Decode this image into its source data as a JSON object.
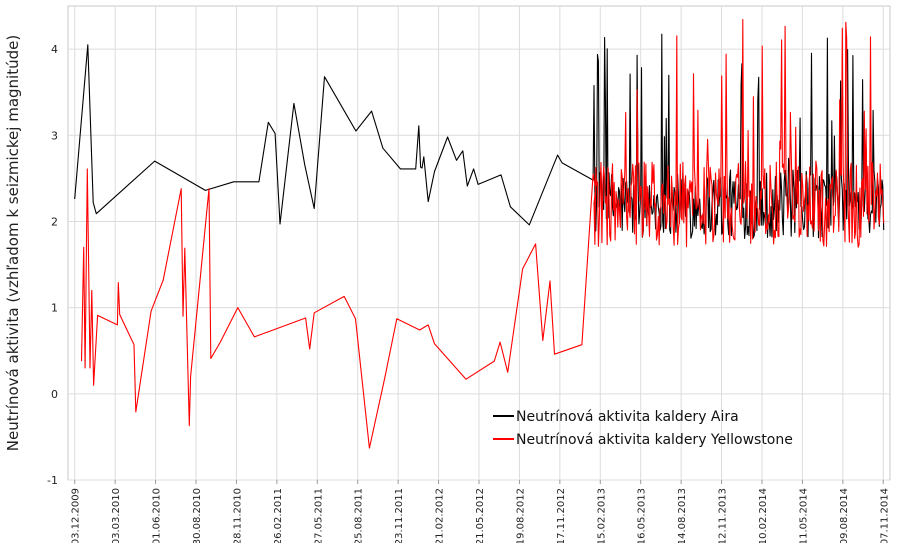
{
  "chart_data": {
    "type": "line",
    "title": "",
    "xlabel": "",
    "ylabel": "Neutrínová aktivita (vzhľadom k seizmickej magnitúde)",
    "x_tick_labels": [
      "03.12.2009",
      "03.03.2010",
      "01.06.2010",
      "30.08.2010",
      "28.11.2010",
      "26.02.2011",
      "27.05.2011",
      "25.08.2011",
      "23.11.2011",
      "21.02.2012",
      "21.05.2012",
      "19.08.2012",
      "17.11.2012",
      "15.02.2013",
      "16.05.2013",
      "14.08.2013",
      "12.11.2013",
      "10.02.2014",
      "11.05.2014",
      "09.08.2014",
      "07.11.2014"
    ],
    "y_tick_labels": [
      "-1",
      "0",
      "1",
      "2",
      "3",
      "4"
    ],
    "ylim": [
      -1,
      4.5
    ],
    "xlim": [
      "2009-11-18",
      "2014-11-22"
    ],
    "grid": true,
    "legend_position": "bottom-right",
    "series": [
      {
        "name": "Neutrínová aktivita kaldery Aira",
        "color": "#000000",
        "x": [
          "2009-12-03",
          "2010-01-01",
          "2010-01-13",
          "2010-01-20",
          "2010-05-30",
          "2010-09-20",
          "2010-11-22",
          "2011-01-17",
          "2011-02-07",
          "2011-02-22",
          "2011-03-05",
          "2011-04-05",
          "2011-04-29",
          "2011-05-20",
          "2011-06-12",
          "2011-08-21",
          "2011-09-25",
          "2011-10-20",
          "2011-11-28",
          "2012-01-01",
          "2012-01-08",
          "2012-01-12",
          "2012-01-15",
          "2012-01-19",
          "2012-01-29",
          "2012-02-12",
          "2012-03-12",
          "2012-04-01",
          "2012-04-15",
          "2012-04-25",
          "2012-05-09",
          "2012-05-19",
          "2012-07-09",
          "2012-07-30",
          "2012-09-10",
          "2012-10-18",
          "2012-11-12",
          "2012-11-22",
          "2013-01-30"
        ],
        "values": [
          2.26,
          4.05,
          2.22,
          2.09,
          2.7,
          2.36,
          2.46,
          2.46,
          3.15,
          3.02,
          1.97,
          3.37,
          2.66,
          2.15,
          3.68,
          3.05,
          3.28,
          2.85,
          2.61,
          2.61,
          3.11,
          2.63,
          2.62,
          2.75,
          2.23,
          2.58,
          2.98,
          2.71,
          2.82,
          2.41,
          2.61,
          2.43,
          2.54,
          2.17,
          1.96,
          2.45,
          2.77,
          2.68,
          2.48
        ],
        "dense_segment": {
          "x_start": "2013-02-01",
          "x_end": "2014-11-08",
          "samples": 330,
          "base_min": 1.8,
          "base_max": 2.6,
          "peak_max": 4.4,
          "seed": 12345
        }
      },
      {
        "name": "Neutrínová aktivita kaldery Yellowstone",
        "color": "#ff0000",
        "x": [
          "2009-12-18",
          "2009-12-23",
          "2009-12-26",
          "2009-12-31",
          "2010-01-03",
          "2010-01-06",
          "2010-01-10",
          "2010-01-14",
          "2010-01-23",
          "2010-03-08",
          "2010-03-10",
          "2010-03-13",
          "2010-04-14",
          "2010-04-18",
          "2010-05-22",
          "2010-06-18",
          "2010-07-28",
          "2010-08-01",
          "2010-08-05",
          "2010-08-15",
          "2010-08-18",
          "2010-09-28",
          "2010-10-02",
          "2010-10-23",
          "2010-12-01",
          "2011-01-07",
          "2011-05-01",
          "2011-05-10",
          "2011-05-20",
          "2011-07-26",
          "2011-08-20",
          "2011-09-20",
          "2011-10-24",
          "2011-11-20",
          "2012-01-10",
          "2012-01-29",
          "2012-02-12",
          "2012-04-22",
          "2012-06-24",
          "2012-07-07",
          "2012-07-24",
          "2012-08-26",
          "2012-09-24",
          "2012-10-10",
          "2012-10-26",
          "2012-11-05",
          "2013-01-05",
          "2013-01-30",
          "2013-02-05"
        ],
        "values": [
          0.38,
          1.7,
          0.3,
          2.61,
          1.45,
          0.3,
          1.2,
          0.1,
          0.91,
          0.8,
          1.29,
          0.92,
          0.57,
          -0.21,
          0.96,
          1.32,
          2.38,
          0.9,
          1.69,
          -0.37,
          0.2,
          2.38,
          0.41,
          0.6,
          1.0,
          0.66,
          0.88,
          0.52,
          0.94,
          1.13,
          0.87,
          -0.63,
          0.18,
          0.87,
          0.74,
          0.8,
          0.58,
          0.17,
          0.38,
          0.6,
          0.25,
          1.45,
          1.74,
          0.62,
          1.31,
          0.46,
          0.57,
          2.55,
          2.38
        ],
        "dense_segment": {
          "x_start": "2013-02-01",
          "x_end": "2014-11-08",
          "samples": 330,
          "base_min": 1.7,
          "base_max": 2.7,
          "peak_max": 4.4,
          "seed": 98765
        }
      }
    ]
  }
}
